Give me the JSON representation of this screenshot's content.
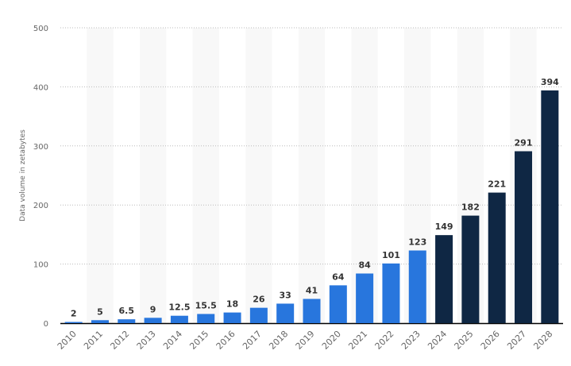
{
  "chart_data": {
    "type": "bar",
    "title": "",
    "xlabel": "",
    "ylabel": "Data volume in zetabytes",
    "ylim": [
      0,
      500
    ],
    "yticks": [
      0,
      100,
      200,
      300,
      400,
      500
    ],
    "grid": true,
    "categories": [
      "2010",
      "2011",
      "2012",
      "2013",
      "2014",
      "2015",
      "2016",
      "2017",
      "2018",
      "2019",
      "2020",
      "2021",
      "2022",
      "2023",
      "2024",
      "2025",
      "2026",
      "2027",
      "2028"
    ],
    "values": [
      2,
      5,
      6.5,
      9,
      12.5,
      15.5,
      18,
      26,
      33,
      41,
      64,
      84,
      101,
      123,
      149,
      182,
      221,
      291,
      394
    ],
    "value_labels": [
      "2",
      "5",
      "6.5",
      "9",
      "12.5",
      "15.5",
      "18",
      "26",
      "33",
      "41",
      "64",
      "84",
      "101",
      "123",
      "149",
      "182",
      "221",
      "291",
      "394"
    ],
    "colors": {
      "actual": "#2876dd",
      "forecast": "#0f2744",
      "stripe": "#f8f8f8"
    },
    "forecast_from": "2024"
  }
}
